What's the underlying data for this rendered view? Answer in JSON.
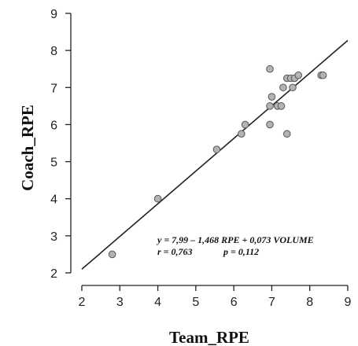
{
  "chart_data": {
    "type": "scatter",
    "xlabel": "Team_RPE",
    "ylabel": "Coach_RPE",
    "xlim": [
      2,
      9
    ],
    "ylim": [
      2,
      9
    ],
    "xticks": [
      "2",
      "3",
      "4",
      "5",
      "6",
      "7",
      "8",
      "9"
    ],
    "yticks": [
      "2",
      "3",
      "4",
      "5",
      "6",
      "7",
      "8",
      "9"
    ],
    "grid": false,
    "point_color": "#b3b3b3",
    "line_color": "#222222",
    "points": [
      {
        "x": 2.8,
        "y": 2.5
      },
      {
        "x": 4.0,
        "y": 4.0
      },
      {
        "x": 5.55,
        "y": 5.33
      },
      {
        "x": 6.2,
        "y": 5.75
      },
      {
        "x": 6.3,
        "y": 6.0
      },
      {
        "x": 6.95,
        "y": 6.0
      },
      {
        "x": 6.95,
        "y": 6.5
      },
      {
        "x": 7.0,
        "y": 6.75
      },
      {
        "x": 6.95,
        "y": 7.5
      },
      {
        "x": 7.15,
        "y": 6.5
      },
      {
        "x": 7.25,
        "y": 6.5
      },
      {
        "x": 7.3,
        "y": 7.0
      },
      {
        "x": 7.4,
        "y": 5.75
      },
      {
        "x": 7.4,
        "y": 7.25
      },
      {
        "x": 7.5,
        "y": 7.25
      },
      {
        "x": 7.55,
        "y": 7.0
      },
      {
        "x": 7.6,
        "y": 7.25
      },
      {
        "x": 7.7,
        "y": 7.33
      },
      {
        "x": 8.3,
        "y": 7.33
      },
      {
        "x": 8.35,
        "y": 7.33
      }
    ],
    "fit_line": {
      "x": [
        2,
        9
      ],
      "y": [
        2.1,
        8.27
      ]
    },
    "annotation": [
      "y = 7,99 – 1,468 RPE + 0,073 VOLUME",
      "r = 0,763",
      "p = 0,112"
    ]
  }
}
